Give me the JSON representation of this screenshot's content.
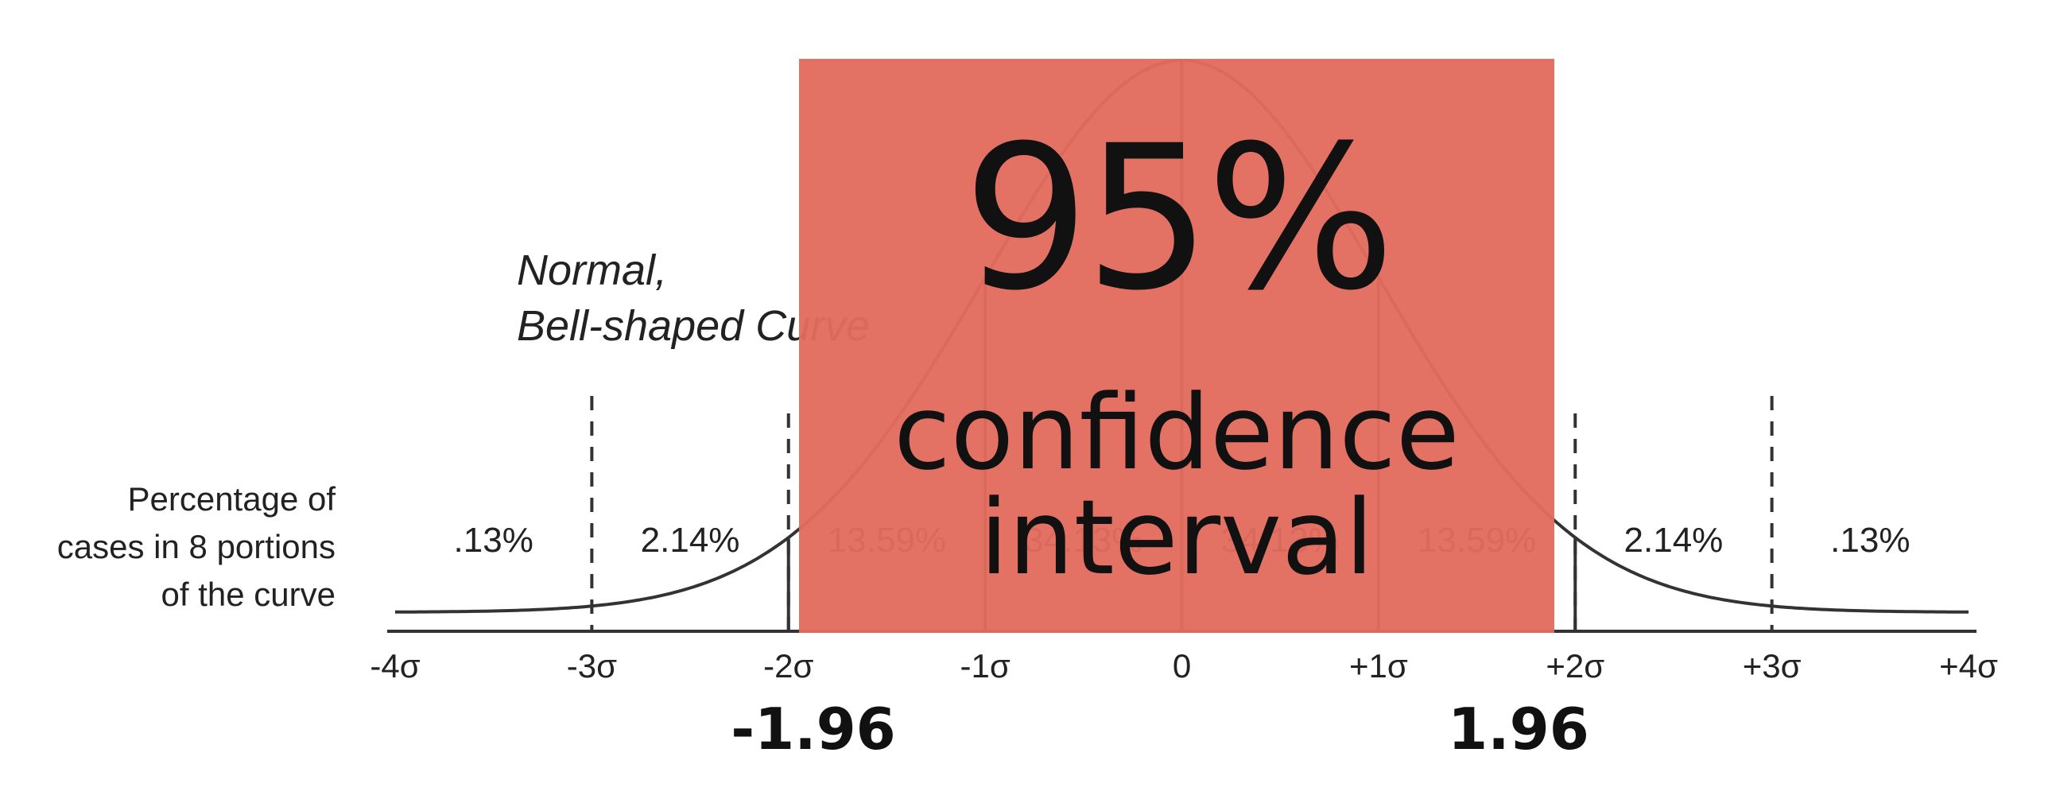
{
  "chart_data": {
    "type": "area",
    "distribution": "normal",
    "x_ticks": [
      {
        "sigma": -4,
        "label": "-4σ"
      },
      {
        "sigma": -3,
        "label": "-3σ"
      },
      {
        "sigma": -2,
        "label": "-2σ"
      },
      {
        "sigma": -1,
        "label": "-1σ"
      },
      {
        "sigma": 0,
        "label": "0"
      },
      {
        "sigma": 1,
        "label": "+1σ"
      },
      {
        "sigma": 2,
        "label": "+2σ"
      },
      {
        "sigma": 3,
        "label": "+3σ"
      },
      {
        "sigma": 4,
        "label": "+4σ"
      }
    ],
    "xlim": [
      -4,
      4
    ],
    "portions": [
      {
        "from": -4,
        "to": -3,
        "label": ".13%",
        "value": 0.13
      },
      {
        "from": -3,
        "to": -2,
        "label": "2.14%",
        "value": 2.14
      },
      {
        "from": -2,
        "to": -1,
        "label": "13.59%",
        "value": 13.59
      },
      {
        "from": -1,
        "to": 0,
        "label": "34.13%",
        "value": 34.13
      },
      {
        "from": 0,
        "to": 1,
        "label": "34.13%",
        "value": 34.13
      },
      {
        "from": 1,
        "to": 2,
        "label": "13.59%",
        "value": 13.59
      },
      {
        "from": 2,
        "to": 3,
        "label": "2.14%",
        "value": 2.14
      },
      {
        "from": 3,
        "to": 4,
        "label": ".13%",
        "value": 0.13
      }
    ],
    "curve_caption": [
      "Normal,",
      "Bell-shaped Curve"
    ],
    "portions_caption": [
      "Percentage of",
      "cases in 8 portions",
      "of the curve"
    ],
    "confidence_interval": {
      "level_label": "95%",
      "label_lines": [
        "confidence",
        "interval"
      ],
      "lower": -1.96,
      "upper": 1.96,
      "lower_label": "-1.96",
      "upper_label": "1.96",
      "color": "#e26b5e"
    },
    "colors": {
      "curve": "#333333",
      "axis": "#333333",
      "text": "#222222",
      "overlay_text": "#111111"
    },
    "grid": false
  }
}
